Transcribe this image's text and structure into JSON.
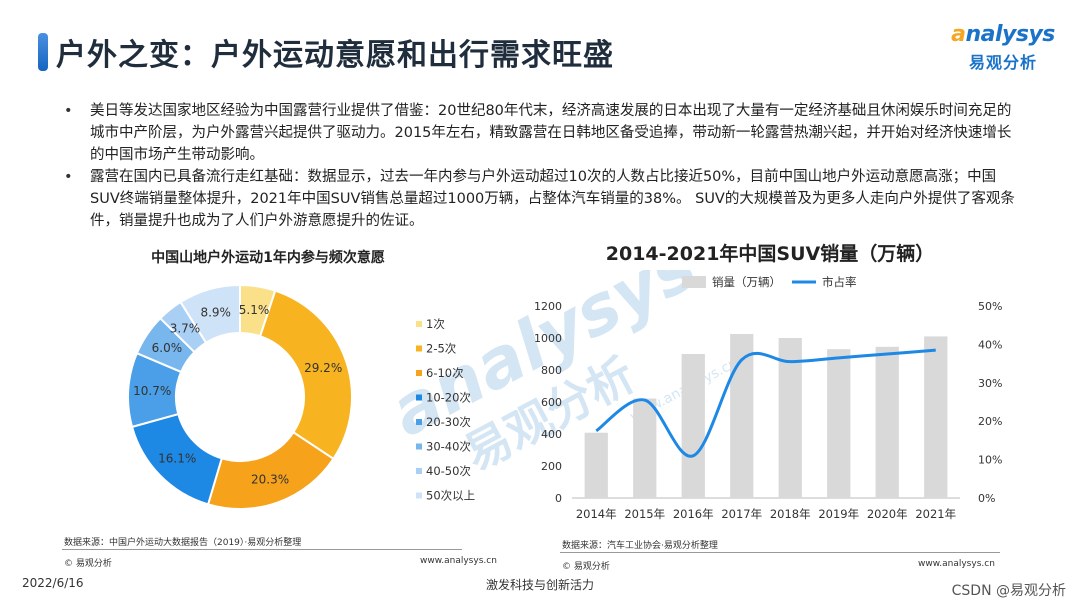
{
  "header": {
    "title": "户外之变：户外运动意愿和出行需求旺盛",
    "logo_en_first": "a",
    "logo_en_rest": "nalysys",
    "logo_cn": "易观分析"
  },
  "bullets": [
    "美日等发达国家地区经验为中国露营行业提供了借鉴：20世纪80年代末，经济高速发展的日本出现了大量有一定经济基础且休闲娱乐时间充足的城市中产阶层，为户外露营兴起提供了驱动力。2015年左右，精致露营在日韩地区备受追捧，带动新一轮露营热潮兴起，并开始对经济快速增长的中国市场产生带动影响。",
    "露营在国内已具备流行走红基础：数据显示，过去一年内参与户外运动超过10次的人数占比接近50%，目前中国山地户外运动意愿高涨；中国SUV终端销量整体提升，2021年中国SUV销售总量超过1000万辆，占整体汽车销量的38%。 SUV的大规模普及为更多人走向户外提供了客观条件，销量提升也成为了人们户外游意愿提升的佐证。"
  ],
  "watermark": {
    "en": "analysys",
    "cn": "易观分析",
    "url": "www.analysys.cn"
  },
  "chart_data": [
    {
      "type": "pie",
      "title": "中国山地户外运动1年内参与频次意愿",
      "categories": [
        "1次",
        "2-5次",
        "6-10次",
        "10-20次",
        "20-30次",
        "30-40次",
        "40-50次",
        "50次以上"
      ],
      "values": [
        5.1,
        29.2,
        20.3,
        16.1,
        10.7,
        6.0,
        3.7,
        8.9
      ],
      "labels": [
        "5.1%",
        "29.2%",
        "20.3%",
        "16.1%",
        "10.7%",
        "6.0%",
        "3.7%",
        "8.9%"
      ],
      "colors": [
        "#fbe08a",
        "#f7b320",
        "#f7a21b",
        "#1e88e5",
        "#4a9fe8",
        "#78b6ee",
        "#a9cff4",
        "#cfe3f8"
      ],
      "legend": "right",
      "source": "数据来源：中国户外运动大数据报告（2019）·易观分析整理",
      "copyright": "© 易观分析",
      "url": "www.analysys.cn"
    },
    {
      "type": "bar",
      "title": "2014-2021年中国SUV销量（万辆）",
      "categories": [
        "2014年",
        "2015年",
        "2016年",
        "2017年",
        "2018年",
        "2019年",
        "2020年",
        "2021年"
      ],
      "series": [
        {
          "name": "销量（万辆）",
          "type": "bar",
          "values": [
            408,
            622,
            900,
            1025,
            1000,
            930,
            945,
            1010
          ],
          "axis": "left",
          "color": "#d9d9d9"
        },
        {
          "name": "市占率",
          "type": "line",
          "values": [
            17.5,
            25.5,
            11,
            36,
            35.5,
            36.5,
            37.5,
            38.5
          ],
          "axis": "right",
          "color": "#1e88e5"
        }
      ],
      "ylim": [
        0,
        1200
      ],
      "yticks": [
        "0",
        "200",
        "400",
        "600",
        "800",
        "1000",
        "1200"
      ],
      "y2lim": [
        0,
        50
      ],
      "y2ticks": [
        "0%",
        "10%",
        "20%",
        "30%",
        "40%",
        "50%"
      ],
      "legend": "top",
      "source": "数据来源：汽车工业协会·易观分析整理",
      "copyright": "© 易观分析",
      "url": "www.analysys.cn"
    }
  ],
  "footer": {
    "date": "2022/6/16",
    "slogan": "激发科技与创新活力",
    "csdn": "CSDN @易观分析"
  }
}
